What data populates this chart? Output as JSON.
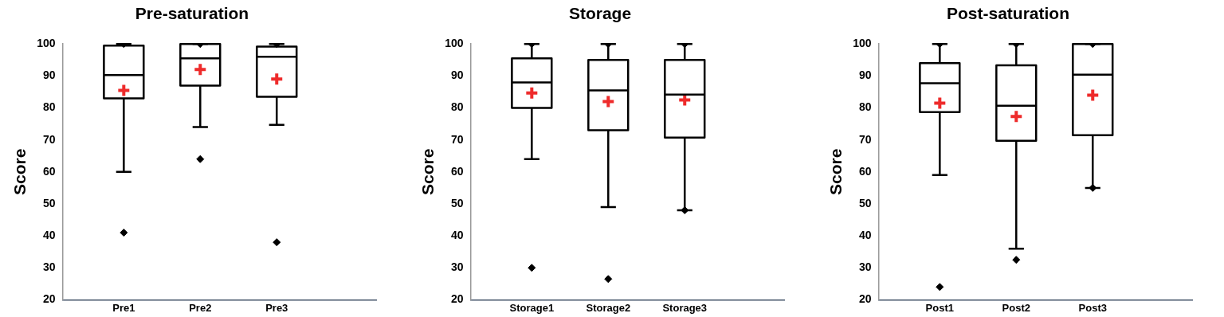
{
  "chart_data": [
    {
      "type": "box",
      "title": "Pre-saturation",
      "ylabel": "Score",
      "categories": [
        "Pre1",
        "Pre2",
        "Pre3"
      ],
      "ylim": [
        20,
        100
      ],
      "yticks": [
        20,
        30,
        40,
        50,
        60,
        70,
        80,
        90,
        100
      ],
      "boxes": [
        {
          "low": 60,
          "q1": 83,
          "median": 90.3,
          "q3": 99.5,
          "high": 100,
          "outliers": [
            41,
            100
          ]
        },
        {
          "low": 74,
          "q1": 87,
          "median": 95.5,
          "q3": 100,
          "high": 100,
          "outliers": [
            64,
            100
          ]
        },
        {
          "low": 74.7,
          "q1": 83.5,
          "median": 96,
          "q3": 99.2,
          "high": 100,
          "outliers": [
            38,
            100
          ]
        }
      ],
      "series": [
        {
          "type": "scatter",
          "color": "#ee2b2b",
          "marker": "cross",
          "x": [
            "Pre1",
            "Pre2",
            "Pre3"
          ],
          "values": [
            85.5,
            92,
            89
          ]
        }
      ]
    },
    {
      "type": "box",
      "title": "Storage",
      "ylabel": "Score",
      "categories": [
        "Storage1",
        "Storage2",
        "Storage3"
      ],
      "ylim": [
        20,
        100
      ],
      "yticks": [
        20,
        30,
        40,
        50,
        60,
        70,
        80,
        90,
        100
      ],
      "boxes": [
        {
          "low": 64,
          "q1": 80,
          "median": 88,
          "q3": 95.5,
          "high": 100,
          "outliers": [
            30,
            100
          ]
        },
        {
          "low": 49,
          "q1": 73,
          "median": 85.5,
          "q3": 95,
          "high": 100,
          "outliers": [
            26.5,
            100
          ]
        },
        {
          "low": 48,
          "q1": 70.7,
          "median": 84.2,
          "q3": 95,
          "high": 100,
          "outliers": [
            48,
            100
          ]
        }
      ],
      "series": [
        {
          "type": "scatter",
          "color": "#ee2b2b",
          "marker": "cross",
          "x": [
            "Storage1",
            "Storage2",
            "Storage3"
          ],
          "values": [
            84.7,
            82,
            82.5
          ]
        }
      ]
    },
    {
      "type": "box",
      "title": "Post-saturation",
      "ylabel": "Score",
      "categories": [
        "Post1",
        "Post2",
        "Post3"
      ],
      "ylim": [
        20,
        100
      ],
      "yticks": [
        20,
        30,
        40,
        50,
        60,
        70,
        80,
        90,
        100
      ],
      "boxes": [
        {
          "low": 59,
          "q1": 78.7,
          "median": 87.7,
          "q3": 94,
          "high": 100,
          "outliers": [
            24,
            100
          ]
        },
        {
          "low": 36,
          "q1": 69.7,
          "median": 80.7,
          "q3": 93.3,
          "high": 100,
          "outliers": [
            32.5,
            100
          ]
        },
        {
          "low": 55,
          "q1": 71.5,
          "median": 90.4,
          "q3": 100,
          "high": 100,
          "outliers": [
            55,
            100
          ]
        }
      ],
      "series": [
        {
          "type": "scatter",
          "color": "#ee2b2b",
          "marker": "cross",
          "x": [
            "Post1",
            "Post2",
            "Post3"
          ],
          "values": [
            81.5,
            77.3,
            84
          ]
        }
      ]
    }
  ]
}
